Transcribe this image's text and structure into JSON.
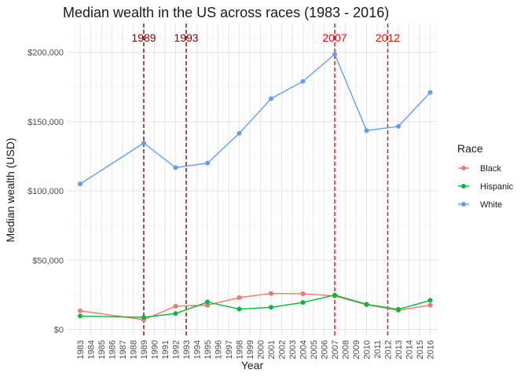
{
  "chart_data": {
    "type": "line",
    "title": "Median wealth in the US across races (1983 - 2016)",
    "xlabel": "Year",
    "ylabel": "Median wealth (USD)",
    "x_ticks": [
      1983,
      1984,
      1985,
      1986,
      1987,
      1988,
      1989,
      1990,
      1991,
      1992,
      1993,
      1994,
      1995,
      1996,
      1997,
      1998,
      1999,
      2000,
      2001,
      2002,
      2003,
      2004,
      2005,
      2006,
      2007,
      2008,
      2009,
      2010,
      2011,
      2012,
      2013,
      2014,
      2015,
      2016
    ],
    "xlim": [
      1983,
      2016
    ],
    "ylim": [
      0,
      200000
    ],
    "y_ticks": [
      0,
      50000,
      100000,
      150000,
      200000
    ],
    "y_tick_labels": [
      "$0",
      "$50,000",
      "$100,000",
      "$150,000",
      "$200,000"
    ],
    "grid": true,
    "legend": {
      "title": "Race",
      "position": "right"
    },
    "series": [
      {
        "name": "Black",
        "color": "#F8766D",
        "x": [
          1983,
          1989,
          1992,
          1995,
          1998,
          2001,
          2004,
          2007,
          2010,
          2013,
          2016
        ],
        "y": [
          13500,
          7000,
          16800,
          17500,
          23000,
          26000,
          25800,
          24200,
          17800,
          13800,
          17500
        ]
      },
      {
        "name": "Hispanic",
        "color": "#00BA38",
        "x": [
          1983,
          1989,
          1992,
          1995,
          1998,
          2001,
          2004,
          2007,
          2010,
          2013,
          2016
        ],
        "y": [
          9700,
          8800,
          11500,
          19800,
          14700,
          16000,
          19500,
          24800,
          18200,
          14500,
          21000
        ]
      },
      {
        "name": "White",
        "color": "#619CFF",
        "x": [
          1983,
          1989,
          1992,
          1995,
          1998,
          2001,
          2004,
          2007,
          2010,
          2013,
          2016
        ],
        "y": [
          105000,
          134500,
          116700,
          120000,
          141500,
          166500,
          179000,
          198500,
          143500,
          146500,
          171000
        ]
      }
    ],
    "annotations": [
      {
        "label": "1989",
        "x": 1989,
        "color": "#8B0000"
      },
      {
        "label": "1993",
        "x": 1993,
        "color": "#8B0000"
      },
      {
        "label": "2007",
        "x": 2007,
        "color": "#FF0000"
      },
      {
        "label": "2012",
        "x": 2012,
        "color": "#FF0000"
      }
    ]
  }
}
